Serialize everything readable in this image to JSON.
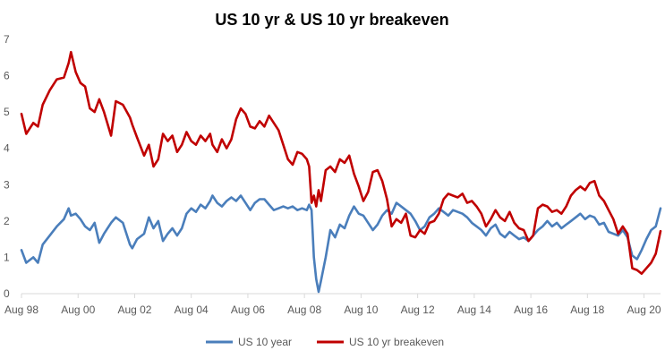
{
  "chart_data": {
    "type": "line",
    "title": "US 10 yr & US 10 yr breakeven",
    "xlabel": "",
    "ylabel": "",
    "ylim": [
      0,
      7
    ],
    "yticks": [
      0,
      1,
      2,
      3,
      4,
      5,
      6,
      7
    ],
    "xlim": [
      "1998-08",
      "2021-03"
    ],
    "xticks": [
      {
        "date": "1998-08",
        "label": "Aug 98"
      },
      {
        "date": "2000-08",
        "label": "Aug 00"
      },
      {
        "date": "2002-08",
        "label": "Aug 02"
      },
      {
        "date": "2004-08",
        "label": "Aug 04"
      },
      {
        "date": "2006-08",
        "label": "Aug 06"
      },
      {
        "date": "2008-08",
        "label": "Aug 08"
      },
      {
        "date": "2010-08",
        "label": "Aug 10"
      },
      {
        "date": "2012-08",
        "label": "Aug 12"
      },
      {
        "date": "2014-08",
        "label": "Aug 14"
      },
      {
        "date": "2016-08",
        "label": "Aug 16"
      },
      {
        "date": "2018-08",
        "label": "Aug 18"
      },
      {
        "date": "2020-08",
        "label": "Aug 20"
      }
    ],
    "grid": false,
    "legend": "bottom",
    "series": [
      {
        "name": "US 10 year",
        "color": "#4a7ebb",
        "points": [
          [
            "1998-08",
            1.2
          ],
          [
            "1998-10",
            0.85
          ],
          [
            "1999-01",
            1.0
          ],
          [
            "1999-03",
            0.85
          ],
          [
            "1999-05",
            1.35
          ],
          [
            "1999-08",
            1.6
          ],
          [
            "1999-11",
            1.85
          ],
          [
            "2000-02",
            2.05
          ],
          [
            "2000-04",
            2.35
          ],
          [
            "2000-05",
            2.15
          ],
          [
            "2000-07",
            2.2
          ],
          [
            "2000-09",
            2.05
          ],
          [
            "2000-11",
            1.85
          ],
          [
            "2001-01",
            1.75
          ],
          [
            "2001-03",
            1.95
          ],
          [
            "2001-05",
            1.4
          ],
          [
            "2001-07",
            1.65
          ],
          [
            "2001-10",
            1.95
          ],
          [
            "2001-12",
            2.1
          ],
          [
            "2002-03",
            1.95
          ],
          [
            "2002-06",
            1.35
          ],
          [
            "2002-07",
            1.25
          ],
          [
            "2002-09",
            1.5
          ],
          [
            "2002-12",
            1.65
          ],
          [
            "2003-02",
            2.1
          ],
          [
            "2003-04",
            1.8
          ],
          [
            "2003-06",
            2.0
          ],
          [
            "2003-08",
            1.45
          ],
          [
            "2003-10",
            1.65
          ],
          [
            "2003-12",
            1.8
          ],
          [
            "2004-02",
            1.6
          ],
          [
            "2004-04",
            1.8
          ],
          [
            "2004-06",
            2.2
          ],
          [
            "2004-08",
            2.35
          ],
          [
            "2004-10",
            2.25
          ],
          [
            "2004-12",
            2.45
          ],
          [
            "2005-02",
            2.35
          ],
          [
            "2005-04",
            2.55
          ],
          [
            "2005-05",
            2.7
          ],
          [
            "2005-07",
            2.5
          ],
          [
            "2005-09",
            2.4
          ],
          [
            "2005-11",
            2.55
          ],
          [
            "2006-01",
            2.65
          ],
          [
            "2006-03",
            2.55
          ],
          [
            "2006-05",
            2.7
          ],
          [
            "2006-07",
            2.5
          ],
          [
            "2006-09",
            2.3
          ],
          [
            "2006-11",
            2.5
          ],
          [
            "2007-01",
            2.6
          ],
          [
            "2007-03",
            2.6
          ],
          [
            "2007-05",
            2.45
          ],
          [
            "2007-07",
            2.3
          ],
          [
            "2007-09",
            2.35
          ],
          [
            "2007-11",
            2.4
          ],
          [
            "2008-01",
            2.35
          ],
          [
            "2008-03",
            2.4
          ],
          [
            "2008-05",
            2.3
          ],
          [
            "2008-07",
            2.35
          ],
          [
            "2008-09",
            2.3
          ],
          [
            "2008-10",
            2.45
          ],
          [
            "2008-11",
            2.3
          ],
          [
            "2008-12",
            1.0
          ],
          [
            "2009-01",
            0.4
          ],
          [
            "2009-02",
            0.05
          ],
          [
            "2009-03",
            0.35
          ],
          [
            "2009-05",
            1.0
          ],
          [
            "2009-07",
            1.75
          ],
          [
            "2009-09",
            1.55
          ],
          [
            "2009-11",
            1.9
          ],
          [
            "2010-01",
            1.8
          ],
          [
            "2010-03",
            2.15
          ],
          [
            "2010-05",
            2.4
          ],
          [
            "2010-07",
            2.2
          ],
          [
            "2010-09",
            2.15
          ],
          [
            "2010-11",
            1.95
          ],
          [
            "2011-01",
            1.75
          ],
          [
            "2011-03",
            1.9
          ],
          [
            "2011-05",
            2.15
          ],
          [
            "2011-07",
            2.3
          ],
          [
            "2011-09",
            2.2
          ],
          [
            "2011-11",
            2.5
          ],
          [
            "2012-01",
            2.4
          ],
          [
            "2012-03",
            2.3
          ],
          [
            "2012-05",
            2.2
          ],
          [
            "2012-07",
            2.0
          ],
          [
            "2012-09",
            1.75
          ],
          [
            "2012-11",
            1.85
          ],
          [
            "2013-01",
            2.1
          ],
          [
            "2013-03",
            2.2
          ],
          [
            "2013-05",
            2.35
          ],
          [
            "2013-07",
            2.25
          ],
          [
            "2013-09",
            2.15
          ],
          [
            "2013-11",
            2.3
          ],
          [
            "2014-01",
            2.25
          ],
          [
            "2014-03",
            2.2
          ],
          [
            "2014-05",
            2.1
          ],
          [
            "2014-07",
            1.95
          ],
          [
            "2014-09",
            1.85
          ],
          [
            "2014-11",
            1.75
          ],
          [
            "2015-01",
            1.6
          ],
          [
            "2015-03",
            1.8
          ],
          [
            "2015-05",
            1.9
          ],
          [
            "2015-07",
            1.65
          ],
          [
            "2015-09",
            1.55
          ],
          [
            "2015-11",
            1.7
          ],
          [
            "2016-01",
            1.6
          ],
          [
            "2016-03",
            1.5
          ],
          [
            "2016-05",
            1.55
          ],
          [
            "2016-07",
            1.45
          ],
          [
            "2016-09",
            1.6
          ],
          [
            "2016-11",
            1.75
          ],
          [
            "2017-01",
            1.85
          ],
          [
            "2017-03",
            2.0
          ],
          [
            "2017-05",
            1.85
          ],
          [
            "2017-07",
            1.95
          ],
          [
            "2017-09",
            1.8
          ],
          [
            "2017-11",
            1.9
          ],
          [
            "2018-01",
            2.0
          ],
          [
            "2018-03",
            2.1
          ],
          [
            "2018-05",
            2.2
          ],
          [
            "2018-07",
            2.05
          ],
          [
            "2018-09",
            2.15
          ],
          [
            "2018-11",
            2.1
          ],
          [
            "2019-01",
            1.9
          ],
          [
            "2019-03",
            1.95
          ],
          [
            "2019-05",
            1.7
          ],
          [
            "2019-07",
            1.65
          ],
          [
            "2019-09",
            1.6
          ],
          [
            "2019-11",
            1.75
          ],
          [
            "2020-01",
            1.55
          ],
          [
            "2020-03",
            1.05
          ],
          [
            "2020-05",
            0.95
          ],
          [
            "2020-07",
            1.2
          ],
          [
            "2020-09",
            1.5
          ],
          [
            "2020-11",
            1.75
          ],
          [
            "2021-01",
            1.85
          ],
          [
            "2021-03",
            2.35
          ]
        ]
      },
      {
        "name": "US 10 yr breakeven",
        "color": "#c00000",
        "points": [
          [
            "1998-08",
            4.95
          ],
          [
            "1998-10",
            4.4
          ],
          [
            "1999-01",
            4.7
          ],
          [
            "1999-03",
            4.6
          ],
          [
            "1999-05",
            5.2
          ],
          [
            "1999-08",
            5.6
          ],
          [
            "1999-11",
            5.9
          ],
          [
            "2000-02",
            5.95
          ],
          [
            "2000-04",
            6.35
          ],
          [
            "2000-05",
            6.65
          ],
          [
            "2000-07",
            6.1
          ],
          [
            "2000-09",
            5.8
          ],
          [
            "2000-11",
            5.7
          ],
          [
            "2001-01",
            5.1
          ],
          [
            "2001-03",
            5.0
          ],
          [
            "2001-05",
            5.35
          ],
          [
            "2001-07",
            5.0
          ],
          [
            "2001-10",
            4.35
          ],
          [
            "2001-12",
            5.3
          ],
          [
            "2002-03",
            5.2
          ],
          [
            "2002-06",
            4.85
          ],
          [
            "2002-07",
            4.65
          ],
          [
            "2002-09",
            4.3
          ],
          [
            "2002-12",
            3.8
          ],
          [
            "2003-02",
            4.1
          ],
          [
            "2003-04",
            3.5
          ],
          [
            "2003-06",
            3.7
          ],
          [
            "2003-08",
            4.4
          ],
          [
            "2003-10",
            4.2
          ],
          [
            "2003-12",
            4.35
          ],
          [
            "2004-02",
            3.9
          ],
          [
            "2004-04",
            4.1
          ],
          [
            "2004-06",
            4.45
          ],
          [
            "2004-08",
            4.2
          ],
          [
            "2004-10",
            4.1
          ],
          [
            "2004-12",
            4.35
          ],
          [
            "2005-02",
            4.2
          ],
          [
            "2005-04",
            4.4
          ],
          [
            "2005-05",
            4.1
          ],
          [
            "2005-07",
            3.9
          ],
          [
            "2005-09",
            4.25
          ],
          [
            "2005-11",
            4.0
          ],
          [
            "2006-01",
            4.25
          ],
          [
            "2006-03",
            4.8
          ],
          [
            "2006-05",
            5.1
          ],
          [
            "2006-07",
            4.95
          ],
          [
            "2006-09",
            4.6
          ],
          [
            "2006-11",
            4.55
          ],
          [
            "2007-01",
            4.75
          ],
          [
            "2007-03",
            4.6
          ],
          [
            "2007-05",
            4.9
          ],
          [
            "2007-07",
            4.7
          ],
          [
            "2007-09",
            4.5
          ],
          [
            "2007-11",
            4.1
          ],
          [
            "2008-01",
            3.7
          ],
          [
            "2008-03",
            3.55
          ],
          [
            "2008-05",
            3.9
          ],
          [
            "2008-07",
            3.85
          ],
          [
            "2008-09",
            3.7
          ],
          [
            "2008-10",
            3.5
          ],
          [
            "2008-11",
            2.5
          ],
          [
            "2008-12",
            2.7
          ],
          [
            "2009-01",
            2.4
          ],
          [
            "2009-02",
            2.85
          ],
          [
            "2009-03",
            2.55
          ],
          [
            "2009-05",
            3.4
          ],
          [
            "2009-07",
            3.5
          ],
          [
            "2009-09",
            3.35
          ],
          [
            "2009-11",
            3.7
          ],
          [
            "2010-01",
            3.6
          ],
          [
            "2010-03",
            3.8
          ],
          [
            "2010-05",
            3.3
          ],
          [
            "2010-07",
            2.95
          ],
          [
            "2010-09",
            2.55
          ],
          [
            "2010-11",
            2.8
          ],
          [
            "2011-01",
            3.35
          ],
          [
            "2011-03",
            3.4
          ],
          [
            "2011-05",
            3.1
          ],
          [
            "2011-07",
            2.6
          ],
          [
            "2011-09",
            1.85
          ],
          [
            "2011-11",
            2.05
          ],
          [
            "2012-01",
            1.95
          ],
          [
            "2012-03",
            2.2
          ],
          [
            "2012-05",
            1.6
          ],
          [
            "2012-07",
            1.55
          ],
          [
            "2012-09",
            1.75
          ],
          [
            "2012-11",
            1.65
          ],
          [
            "2013-01",
            1.95
          ],
          [
            "2013-03",
            2.0
          ],
          [
            "2013-05",
            2.2
          ],
          [
            "2013-07",
            2.6
          ],
          [
            "2013-09",
            2.75
          ],
          [
            "2013-11",
            2.7
          ],
          [
            "2014-01",
            2.65
          ],
          [
            "2014-03",
            2.75
          ],
          [
            "2014-05",
            2.5
          ],
          [
            "2014-07",
            2.55
          ],
          [
            "2014-09",
            2.4
          ],
          [
            "2014-11",
            2.2
          ],
          [
            "2015-01",
            1.85
          ],
          [
            "2015-03",
            2.05
          ],
          [
            "2015-05",
            2.3
          ],
          [
            "2015-07",
            2.1
          ],
          [
            "2015-09",
            2.0
          ],
          [
            "2015-11",
            2.25
          ],
          [
            "2016-01",
            1.95
          ],
          [
            "2016-03",
            1.8
          ],
          [
            "2016-05",
            1.75
          ],
          [
            "2016-07",
            1.45
          ],
          [
            "2016-09",
            1.6
          ],
          [
            "2016-11",
            2.35
          ],
          [
            "2017-01",
            2.45
          ],
          [
            "2017-03",
            2.4
          ],
          [
            "2017-05",
            2.25
          ],
          [
            "2017-07",
            2.3
          ],
          [
            "2017-09",
            2.2
          ],
          [
            "2017-11",
            2.4
          ],
          [
            "2018-01",
            2.7
          ],
          [
            "2018-03",
            2.85
          ],
          [
            "2018-05",
            2.95
          ],
          [
            "2018-07",
            2.85
          ],
          [
            "2018-09",
            3.05
          ],
          [
            "2018-11",
            3.1
          ],
          [
            "2019-01",
            2.7
          ],
          [
            "2019-03",
            2.55
          ],
          [
            "2019-05",
            2.3
          ],
          [
            "2019-07",
            2.05
          ],
          [
            "2019-09",
            1.65
          ],
          [
            "2019-11",
            1.85
          ],
          [
            "2020-01",
            1.65
          ],
          [
            "2020-03",
            0.7
          ],
          [
            "2020-05",
            0.65
          ],
          [
            "2020-07",
            0.55
          ],
          [
            "2020-09",
            0.7
          ],
          [
            "2020-11",
            0.85
          ],
          [
            "2021-01",
            1.1
          ],
          [
            "2021-03",
            1.72
          ]
        ]
      }
    ]
  }
}
